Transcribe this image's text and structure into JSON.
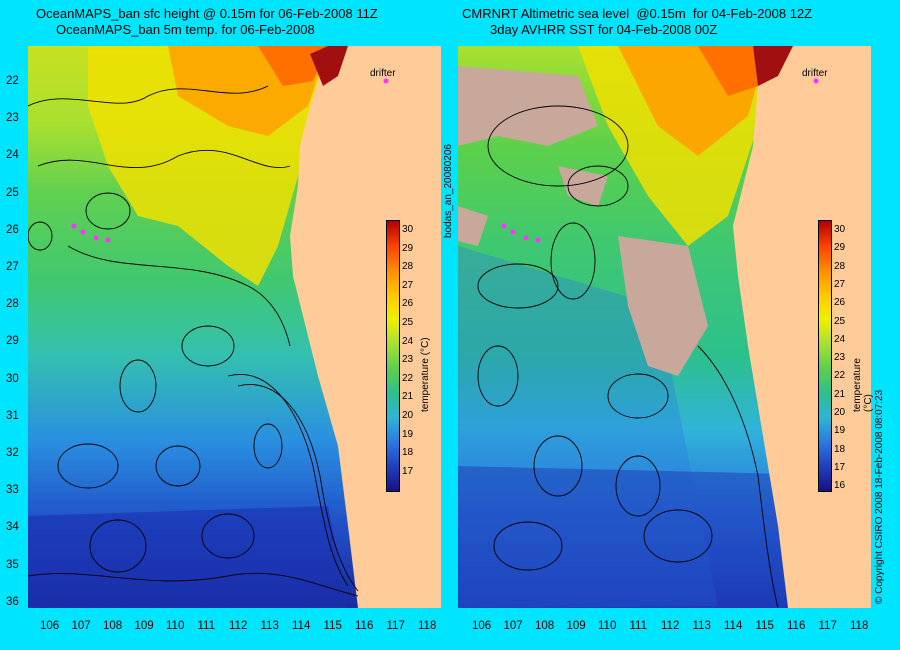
{
  "left_panel": {
    "title_line1": "OceanMAPS_ban sfc height @ 0.15m for 06-Feb-2008 11Z",
    "title_line2": "OceanMAPS_ban 5m temp. for 06-Feb-2008",
    "drifter_label": "drifter",
    "colorbar_label": "temperature (°C)",
    "colorbar_ticks": [
      "30",
      "29",
      "28",
      "27",
      "26",
      "25",
      "24",
      "23",
      "22",
      "21",
      "20",
      "19",
      "18",
      "17"
    ]
  },
  "right_panel": {
    "title_line1": "CMRNRT Altimetric sea level  @0.15m  for 04-Feb-2008 12Z",
    "title_line2": "3day AVHRR SST for 04-Feb-2008 00Z",
    "drifter_label": "drifter",
    "colorbar_label": "temperature (°C)",
    "colorbar_ticks": [
      "30",
      "29",
      "28",
      "27",
      "26",
      "25",
      "24",
      "23",
      "22",
      "21",
      "20",
      "19",
      "18",
      "17",
      "16"
    ]
  },
  "lat_ticks": [
    "22",
    "23",
    "24",
    "25",
    "26",
    "27",
    "28",
    "29",
    "30",
    "31",
    "32",
    "33",
    "34",
    "35",
    "36"
  ],
  "lon_ticks": [
    "106",
    "107",
    "108",
    "109",
    "110",
    "111",
    "112",
    "113",
    "114",
    "115",
    "116",
    "117",
    "118"
  ],
  "side_label": "bodas_an_20080206",
  "copyright": "© Copyright CSIRO 2008  18-Feb-2008 08:07:23",
  "colors": {
    "background": "#00e5ff",
    "land": "#ffcc99",
    "cloud": "#c8a89a",
    "drifter": "#ff33ff"
  },
  "colormap": [
    "#1a0f80",
    "#2040c0",
    "#2a7ae0",
    "#30b4d8",
    "#2cc08c",
    "#5cd04a",
    "#a8e030",
    "#f0f000",
    "#ffc800",
    "#ff8c00",
    "#ff4000",
    "#b00000"
  ]
}
